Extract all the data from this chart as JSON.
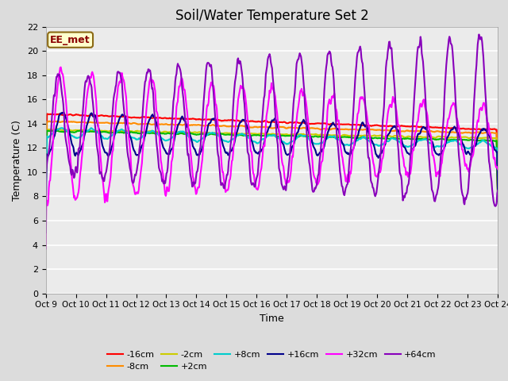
{
  "title": "Soil/Water Temperature Set 2",
  "xlabel": "Time",
  "ylabel": "Temperature (C)",
  "annotation_text": "EE_met",
  "annotation_color": "#8B0000",
  "annotation_bg": "#FFFFCC",
  "annotation_edge": "#8B6914",
  "ylim": [
    0,
    22
  ],
  "yticks": [
    0,
    2,
    4,
    6,
    8,
    10,
    12,
    14,
    16,
    18,
    20,
    22
  ],
  "x_labels": [
    "Oct 9",
    "Oct 10",
    "Oct 11",
    "Oct 12",
    "Oct 13",
    "Oct 14",
    "Oct 15",
    "Oct 16",
    "Oct 17",
    "Oct 18",
    "Oct 19",
    "Oct 20",
    "Oct 21",
    "Oct 22",
    "Oct 23",
    "Oct 24"
  ],
  "series": [
    {
      "label": "-16cm",
      "color": "#FF0000",
      "linewidth": 1.5
    },
    {
      "label": "-8cm",
      "color": "#FF8C00",
      "linewidth": 1.5
    },
    {
      "label": "-2cm",
      "color": "#CCCC00",
      "linewidth": 1.5
    },
    {
      "label": "+2cm",
      "color": "#00BB00",
      "linewidth": 1.5
    },
    {
      "label": "+8cm",
      "color": "#00CCCC",
      "linewidth": 1.5
    },
    {
      "label": "+16cm",
      "color": "#00008B",
      "linewidth": 1.5
    },
    {
      "label": "+32cm",
      "color": "#FF00FF",
      "linewidth": 1.5
    },
    {
      "label": "+64cm",
      "color": "#8800BB",
      "linewidth": 1.5
    }
  ],
  "bg_color": "#DCDCDC",
  "plot_bg": "#EBEBEB",
  "grid_color": "#FFFFFF",
  "title_fontsize": 12,
  "axis_fontsize": 9,
  "tick_fontsize": 8
}
